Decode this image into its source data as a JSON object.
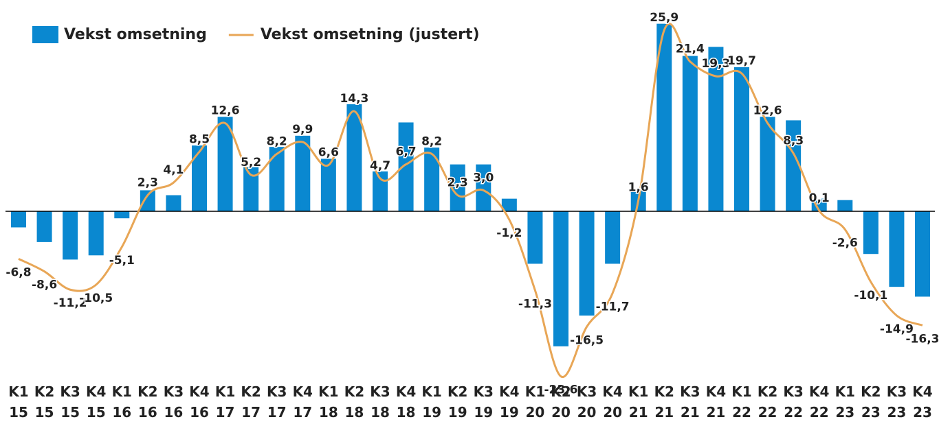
{
  "chart_data": {
    "type": "bar_line",
    "categories": [
      "K1 15",
      "K2 15",
      "K3 15",
      "K4 15",
      "K1 16",
      "K2 16",
      "K3 16",
      "K4 16",
      "K1 17",
      "K2 17",
      "K3 17",
      "K4 17",
      "K1 18",
      "K2 18",
      "K3 18",
      "K4 18",
      "K1 19",
      "K2 19",
      "K3 19",
      "K4 19",
      "K1 20",
      "K2 20",
      "K3 20",
      "K4 20",
      "K1 21",
      "K2 21",
      "K3 21",
      "K4 21",
      "K1 22",
      "K2 22",
      "K3 22",
      "K4 22",
      "K1 23",
      "K2 23",
      "K3 23",
      "K4 23"
    ],
    "series": [
      {
        "name": "Vekst omsetning",
        "type": "bar",
        "color": "#0a88d0",
        "values": [
          -2.3,
          -4.4,
          -6.9,
          -6.3,
          -1.0,
          3.0,
          2.3,
          9.4,
          13.5,
          6.3,
          9.2,
          10.8,
          7.5,
          15.3,
          5.7,
          12.7,
          9.1,
          6.7,
          6.7,
          1.8,
          -7.5,
          -19.3,
          -14.9,
          -7.5,
          3.2,
          26.8,
          22.2,
          23.5,
          20.6,
          13.5,
          13.0,
          1.8,
          1.6,
          -6.1,
          -10.8,
          -12.2
        ]
      },
      {
        "name": "Vekst omsetning (justert)",
        "type": "line",
        "color": "#e8a656",
        "values": [
          -6.8,
          -8.6,
          -11.2,
          -10.5,
          -5.1,
          2.3,
          4.1,
          8.5,
          12.6,
          5.2,
          8.2,
          9.9,
          6.6,
          14.3,
          4.7,
          6.7,
          8.2,
          2.3,
          3.0,
          -1.2,
          -11.3,
          -23.6,
          -16.5,
          -11.7,
          1.6,
          25.9,
          21.4,
          19.3,
          19.7,
          12.6,
          8.3,
          0.1,
          -2.6,
          -10.1,
          -14.9,
          -16.3
        ],
        "value_labels": [
          "-6,8",
          "-8,6",
          "-11,2",
          "-10,5",
          "-5,1",
          "2,3",
          "4,1",
          "8,5",
          "12,6",
          "5,2",
          "8,2",
          "9,9",
          "6,6",
          "14,3",
          "4,7",
          "6,7",
          "8,2",
          "2,3",
          "3,0",
          "-1,2",
          "-11,3",
          "-23,6",
          "-16,5",
          "-11,7",
          "1,6",
          "25,9",
          "21,4",
          "19,3",
          "19,7",
          "12,6",
          "8,3",
          "0,1",
          "-2,6",
          "-10,1",
          "-14,9",
          "-16,3"
        ]
      }
    ],
    "ylim": [
      -25,
      30
    ],
    "legend": "top-left"
  }
}
